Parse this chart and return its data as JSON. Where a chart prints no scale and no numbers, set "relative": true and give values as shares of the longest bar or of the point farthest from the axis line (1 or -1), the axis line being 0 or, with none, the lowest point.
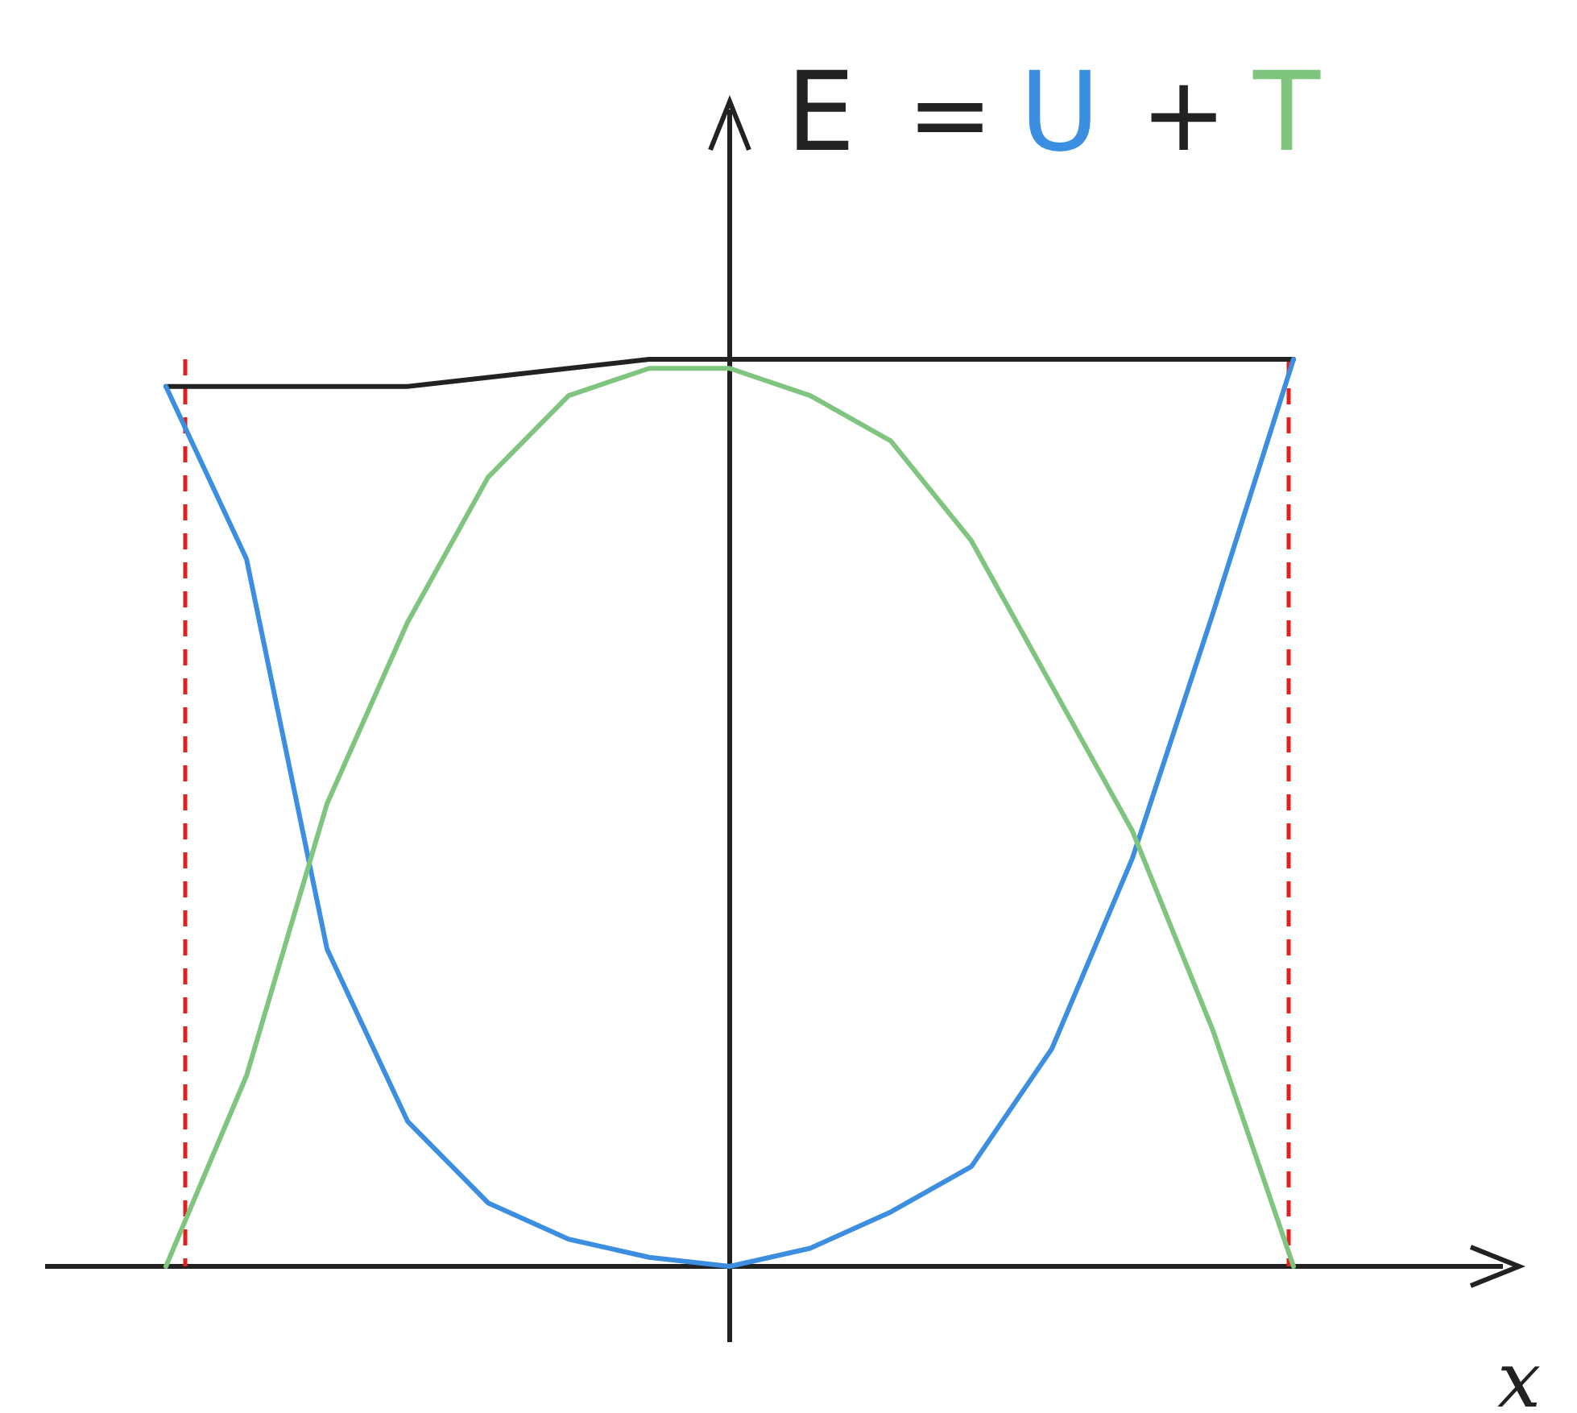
{
  "chart_data": {
    "type": "line",
    "relative": true,
    "xlabel": "x",
    "legend": "top right",
    "annotations": [
      "=",
      "+"
    ],
    "categories": [
      null,
      null,
      null,
      null,
      null,
      null,
      null,
      null,
      null,
      null,
      null,
      null,
      null,
      null,
      null
    ],
    "series": [
      {
        "name": "E",
        "color": "#222222",
        "values": [
          0.97,
          0.97,
          0.97,
          0.97,
          0.98,
          0.99,
          1,
          1,
          1,
          1,
          1,
          1,
          1,
          1,
          1
        ]
      },
      {
        "name": "U",
        "color": "#3b8ee0",
        "values": [
          0.97,
          0.78,
          0.35,
          0.16,
          0.07,
          0.03,
          0.01,
          0,
          0.02,
          0.06,
          0.11,
          0.24,
          0.45,
          0.72,
          1
        ]
      },
      {
        "name": "T",
        "color": "#7fc47f",
        "values": [
          0,
          0.21,
          0.51,
          0.71,
          0.87,
          0.96,
          0.99,
          0.99,
          0.96,
          0.91,
          0.8,
          0.64,
          0.48,
          0.26,
          0
        ]
      }
    ]
  }
}
